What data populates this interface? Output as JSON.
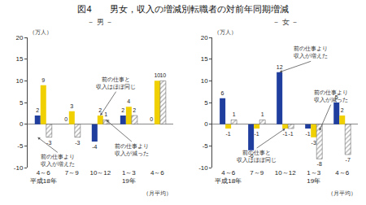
{
  "title": "図4　　男女，収入の増減別転職者の対前年同期増減",
  "chart_data": [
    {
      "type": "bar",
      "title": "－ 男 －",
      "xlabel": "（月平均）",
      "ylabel": "（万人）",
      "categories": [
        "4～6\n平成18年",
        "7～9",
        "10～12",
        "1～3\n19年",
        "4～6"
      ],
      "series": [
        {
          "name": "前の仕事より\n収入が増えた",
          "color": "#1f3e9e",
          "values": [
            2,
            0,
            -4,
            2,
            0
          ],
          "note": {
            "x": 0,
            "y": -3
          }
        },
        {
          "name": "前の仕事と\n収入はほぼ同じ",
          "color": "#f0d000",
          "values": [
            9,
            3,
            2,
            4,
            10
          ],
          "note": {
            "x": 2,
            "y": 2
          }
        },
        {
          "name": "前の仕事より\n収入が減った",
          "color": "#555555",
          "marker": "hatch",
          "values": [
            -3,
            -3,
            1,
            2,
            10
          ],
          "note": {
            "x": 2,
            "y": 1
          }
        }
      ],
      "ylim": [
        -10,
        20
      ],
      "yticks": [
        -10,
        -5,
        0,
        5,
        10,
        15,
        20
      ],
      "data_labels": true,
      "grid": false
    },
    {
      "type": "bar",
      "title": "－ 女 －",
      "xlabel": "（月平均）",
      "ylabel": "（万人）",
      "categories": [
        "4～6\n平成18年",
        "7～9",
        "10～12",
        "1～3\n19年",
        "4～6"
      ],
      "series": [
        {
          "name": "前の仕事より\n収入が増えた",
          "color": "#1f3e9e",
          "values": [
            6,
            -6,
            12,
            -1,
            5
          ],
          "note": {
            "x": 2,
            "y": 12
          }
        },
        {
          "name": "前の仕事と\n収入はほぼ同じ",
          "color": "#f0d000",
          "values": [
            -1,
            -1,
            -1,
            -3,
            2
          ],
          "note": {
            "x": 2,
            "y": -1
          }
        },
        {
          "name": "前の仕事より\n収入が減った",
          "color": "#555555",
          "marker": "hatch",
          "values": [
            1,
            1,
            -1,
            -8,
            -7
          ],
          "note": {
            "x": 3,
            "y": -1.5
          }
        }
      ],
      "ylim": [
        -10,
        20
      ],
      "yticks": [
        -10,
        -5,
        0,
        5,
        10,
        15,
        20
      ],
      "data_labels": true,
      "grid": false
    }
  ]
}
